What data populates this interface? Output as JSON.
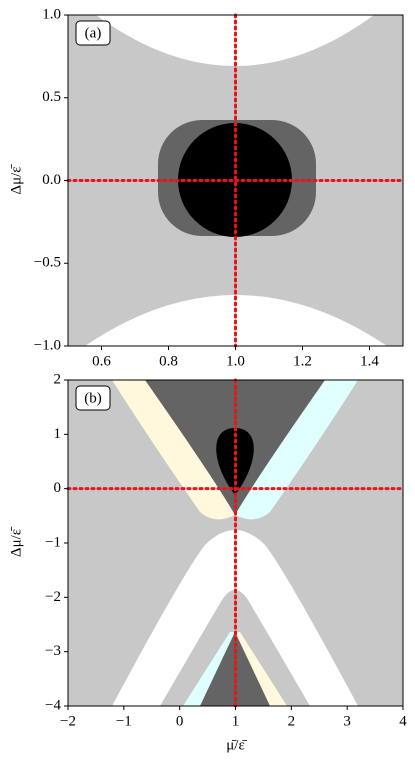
{
  "chart_data": [
    {
      "type": "region",
      "label": "(a)",
      "ylabel": "Δμ/ε̄",
      "xlim": [
        0.5,
        1.5
      ],
      "ylim": [
        -1,
        1
      ],
      "xticks": [
        0.6,
        0.8,
        {
          "value": 1,
          "label": "1.0"
        },
        1.2,
        1.4
      ],
      "yticks": [
        {
          "value": -1,
          "label": "−1.0"
        },
        {
          "value": -0.5,
          "label": "−0.5"
        },
        {
          "value": 0,
          "label": "0.0"
        },
        0.5,
        {
          "value": 1,
          "label": "1.0"
        }
      ],
      "vlines": [
        1
      ],
      "hlines": [
        0
      ],
      "line_color": "#e8141c"
    },
    {
      "type": "region",
      "label": "(b)",
      "ylabel": "Δμ/ε̄",
      "xlabel": "μ̄/ε̄",
      "xlim": [
        -2,
        4
      ],
      "ylim": [
        -4,
        2
      ],
      "xticks": [
        {
          "value": -2,
          "label": "−2"
        },
        {
          "value": -1,
          "label": "−1"
        },
        0,
        1,
        2,
        3,
        4
      ],
      "yticks": [
        {
          "value": -4,
          "label": "−4"
        },
        {
          "value": -3,
          "label": "−3"
        },
        {
          "value": -2,
          "label": "−2"
        },
        {
          "value": -1,
          "label": "−1"
        },
        0,
        1,
        2
      ],
      "vlines": [
        1
      ],
      "hlines": [
        0
      ],
      "line_color": "#e8141c"
    }
  ]
}
